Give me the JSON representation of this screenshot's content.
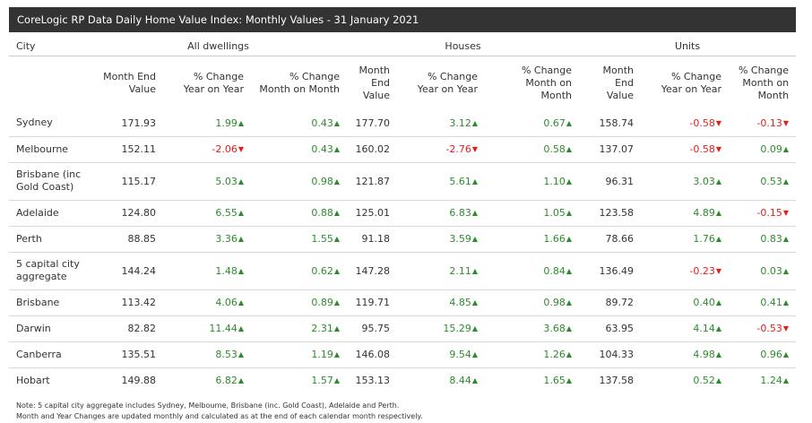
{
  "title": "CoreLogic RP Data Daily Home Value Index: Monthly Values - 31 January 2021",
  "colors": {
    "positive": "#2e8b2e",
    "negative": "#e0201c",
    "header_bg": "#333333"
  },
  "icons": {
    "positive": "triangle-up",
    "negative": "triangle-down"
  },
  "columns": {
    "city": "City",
    "groups": [
      "All dwellings",
      "Houses",
      "Units"
    ],
    "sub": [
      "Month End Value",
      "% Change Year on Year",
      "% Change Month on Month"
    ]
  },
  "rows": [
    {
      "city": "Sydney",
      "values": [
        "171.93",
        "1.99",
        "0.43",
        "177.70",
        "3.12",
        "0.67",
        "158.74",
        "-0.58",
        "-0.13"
      ]
    },
    {
      "city": "Melbourne",
      "values": [
        "152.11",
        "-2.06",
        "0.43",
        "160.02",
        "-2.76",
        "0.58",
        "137.07",
        "-0.58",
        "0.09"
      ]
    },
    {
      "city": "Brisbane (inc Gold Coast)",
      "values": [
        "115.17",
        "5.03",
        "0.98",
        "121.87",
        "5.61",
        "1.10",
        "96.31",
        "3.03",
        "0.53"
      ]
    },
    {
      "city": "Adelaide",
      "values": [
        "124.80",
        "6.55",
        "0.88",
        "125.01",
        "6.83",
        "1.05",
        "123.58",
        "4.89",
        "-0.15"
      ]
    },
    {
      "city": "Perth",
      "values": [
        "88.85",
        "3.36",
        "1.55",
        "91.18",
        "3.59",
        "1.66",
        "78.66",
        "1.76",
        "0.83"
      ]
    },
    {
      "city": "5 capital city aggregate",
      "values": [
        "144.24",
        "1.48",
        "0.62",
        "147.28",
        "2.11",
        "0.84",
        "136.49",
        "-0.23",
        "0.03"
      ]
    },
    {
      "city": "Brisbane",
      "values": [
        "113.42",
        "4.06",
        "0.89",
        "119.71",
        "4.85",
        "0.98",
        "89.72",
        "0.40",
        "0.41"
      ]
    },
    {
      "city": "Darwin",
      "values": [
        "82.82",
        "11.44",
        "2.31",
        "95.75",
        "15.29",
        "3.68",
        "63.95",
        "4.14",
        "-0.53"
      ]
    },
    {
      "city": "Canberra",
      "values": [
        "135.51",
        "8.53",
        "1.19",
        "146.08",
        "9.54",
        "1.26",
        "104.33",
        "4.98",
        "0.96"
      ]
    },
    {
      "city": "Hobart",
      "values": [
        "149.88",
        "6.82",
        "1.57",
        "153.13",
        "8.44",
        "1.65",
        "137.58",
        "0.52",
        "1.24"
      ]
    }
  ],
  "notes": [
    "Note: 5 capital city aggregate includes Sydney, Melbourne, Brisbane (inc. Gold Coast), Adelaide and Perth.",
    "Month and Year Changes are updated monthly and calculated as at the end of each calendar month respectively."
  ]
}
